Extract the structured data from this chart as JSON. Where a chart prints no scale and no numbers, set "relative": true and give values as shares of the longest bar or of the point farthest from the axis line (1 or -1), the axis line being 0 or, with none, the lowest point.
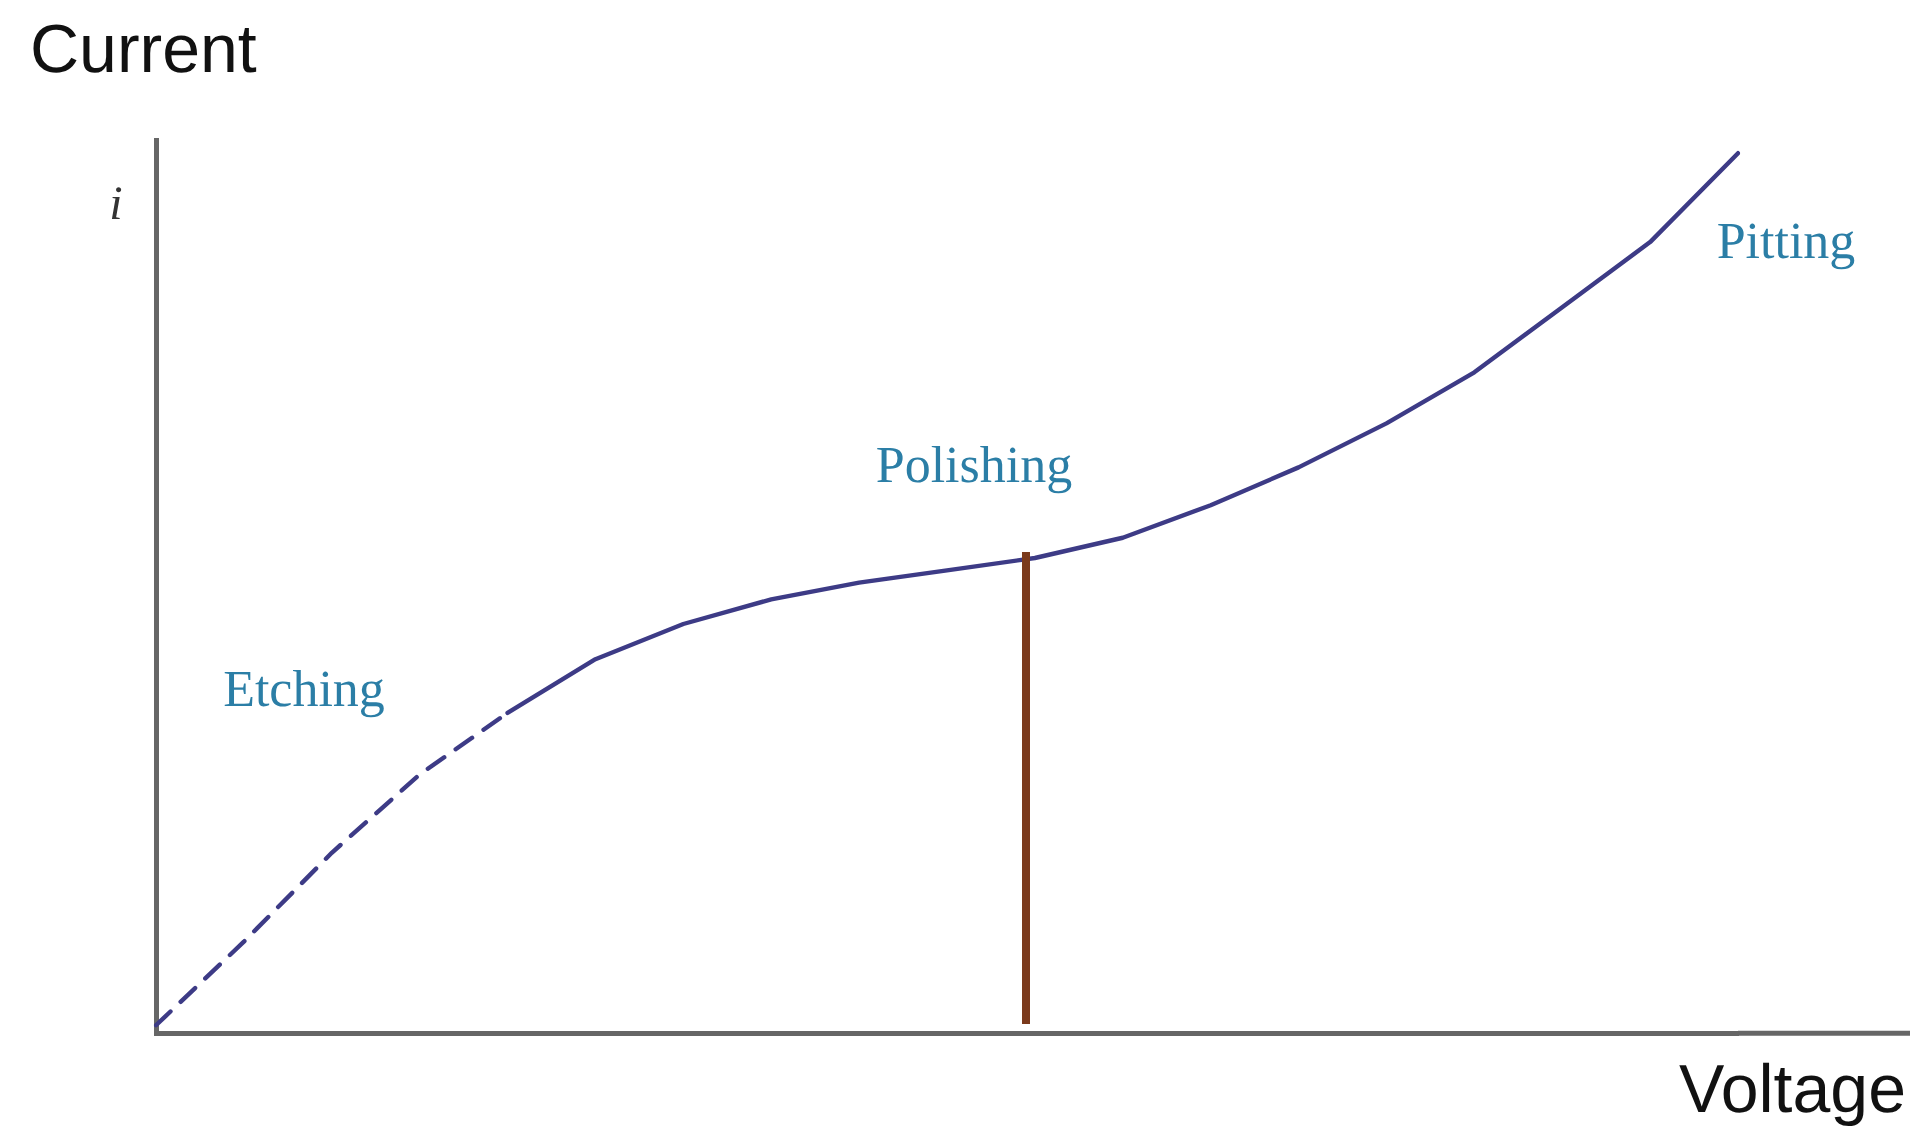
{
  "chart_data": {
    "type": "line",
    "relative": true,
    "xlabel": "Voltage",
    "ylabel": "i",
    "grid": false,
    "legend": false,
    "marker": "none",
    "categories": [
      null,
      null,
      null,
      null,
      null,
      null,
      null,
      null,
      null,
      null,
      null,
      null,
      null,
      null,
      null,
      null,
      null,
      null,
      null
    ],
    "series": [
      {
        "color": "#3d3b86",
        "line_style": "dashed",
        "values": [
          0.009,
          0.104,
          0.205,
          0.294,
          0.364,
          null,
          null,
          null,
          null,
          null,
          null,
          null,
          null,
          null,
          null,
          null,
          null,
          null,
          null
        ]
      },
      {
        "color": "#3d3b86",
        "line_style": "solid",
        "values": [
          null,
          null,
          null,
          null,
          0.364,
          0.425,
          0.465,
          0.493,
          0.512,
          0.526,
          0.54,
          0.563,
          0.6,
          0.643,
          0.693,
          0.751,
          0.825,
          0.899,
          1
        ]
      }
    ],
    "annotations": [
      "Current",
      "Etching",
      "Polishing",
      "Pitting"
    ]
  }
}
